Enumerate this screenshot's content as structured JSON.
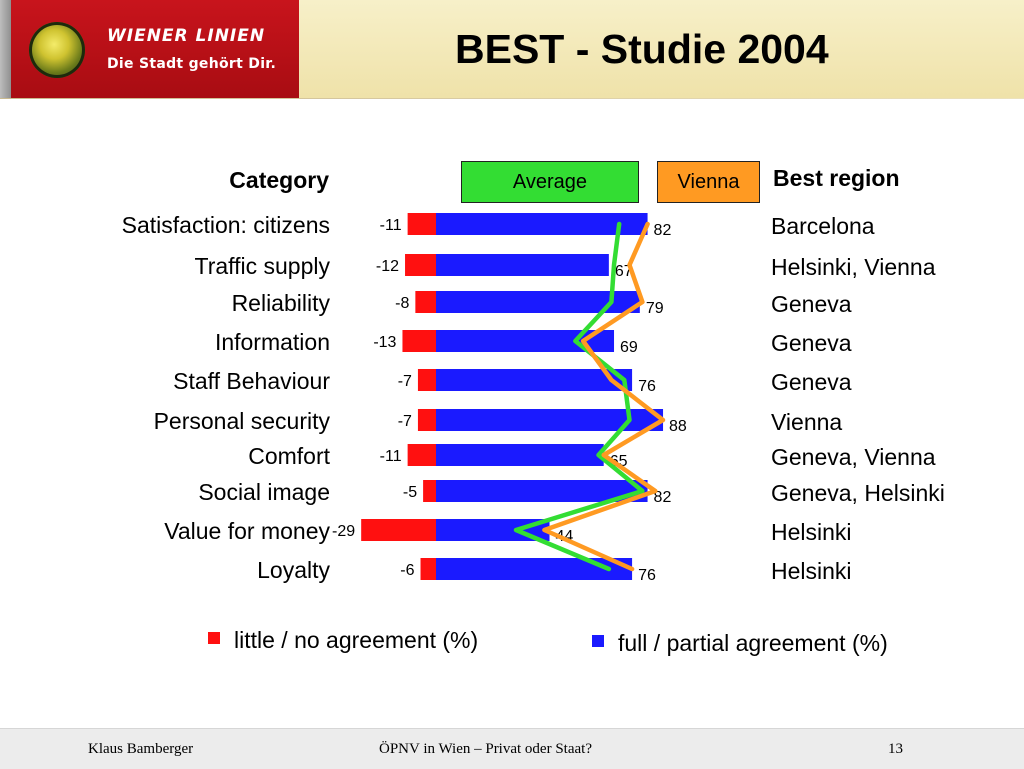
{
  "slide": {
    "title": "BEST - Studie 2004",
    "brand": {
      "wordmark": "WIENER LINIEN",
      "slogan": "Die Stadt gehört Dir."
    }
  },
  "table_headers": {
    "category": "Category",
    "best_region": "Best region"
  },
  "line_legend": {
    "average": "Average",
    "vienna": "Vienna"
  },
  "bar_legend": {
    "negative": "little / no agreement (%)",
    "positive": "full / partial agreement (%)"
  },
  "footer": {
    "author": "Klaus Bamberger",
    "topic": "ÖPNV in Wien – Privat oder Staat?",
    "page": "13"
  },
  "colors": {
    "negative_bar": "#ff1010",
    "positive_bar": "#1a1aff",
    "average_line": "#33dd33",
    "vienna_line": "#ff9a22",
    "header_band": "#c8141c"
  },
  "chart_data": {
    "type": "bar",
    "orientation": "horizontal",
    "categories": [
      "Satisfaction: citizens",
      "Traffic supply",
      "Reliability",
      "Information",
      "Staff Behaviour",
      "Personal security",
      "Comfort",
      "Social image",
      "Value for money",
      "Loyalty"
    ],
    "series": [
      {
        "name": "little / no agreement (%)",
        "values": [
          -11,
          -12,
          -8,
          -13,
          -7,
          -7,
          -11,
          -5,
          -29,
          -6
        ]
      },
      {
        "name": "full / partial agreement (%)",
        "values": [
          82,
          67,
          79,
          69,
          76,
          88,
          65,
          82,
          44,
          76
        ]
      }
    ],
    "lines": [
      {
        "name": "Average",
        "values": [
          71,
          69,
          68,
          54,
          73,
          75,
          63,
          80,
          31,
          67
        ]
      },
      {
        "name": "Vienna",
        "values": [
          82,
          75,
          80,
          57,
          68,
          88,
          65,
          85,
          42,
          76
        ]
      }
    ],
    "best_region": [
      "Barcelona",
      "Helsinki, Vienna",
      "Geneva",
      "Geneva",
      "Geneva",
      "Vienna",
      "Geneva, Vienna",
      "Geneva, Helsinki",
      "Helsinki",
      "Helsinki"
    ],
    "xlim": [
      -35,
      90
    ]
  }
}
